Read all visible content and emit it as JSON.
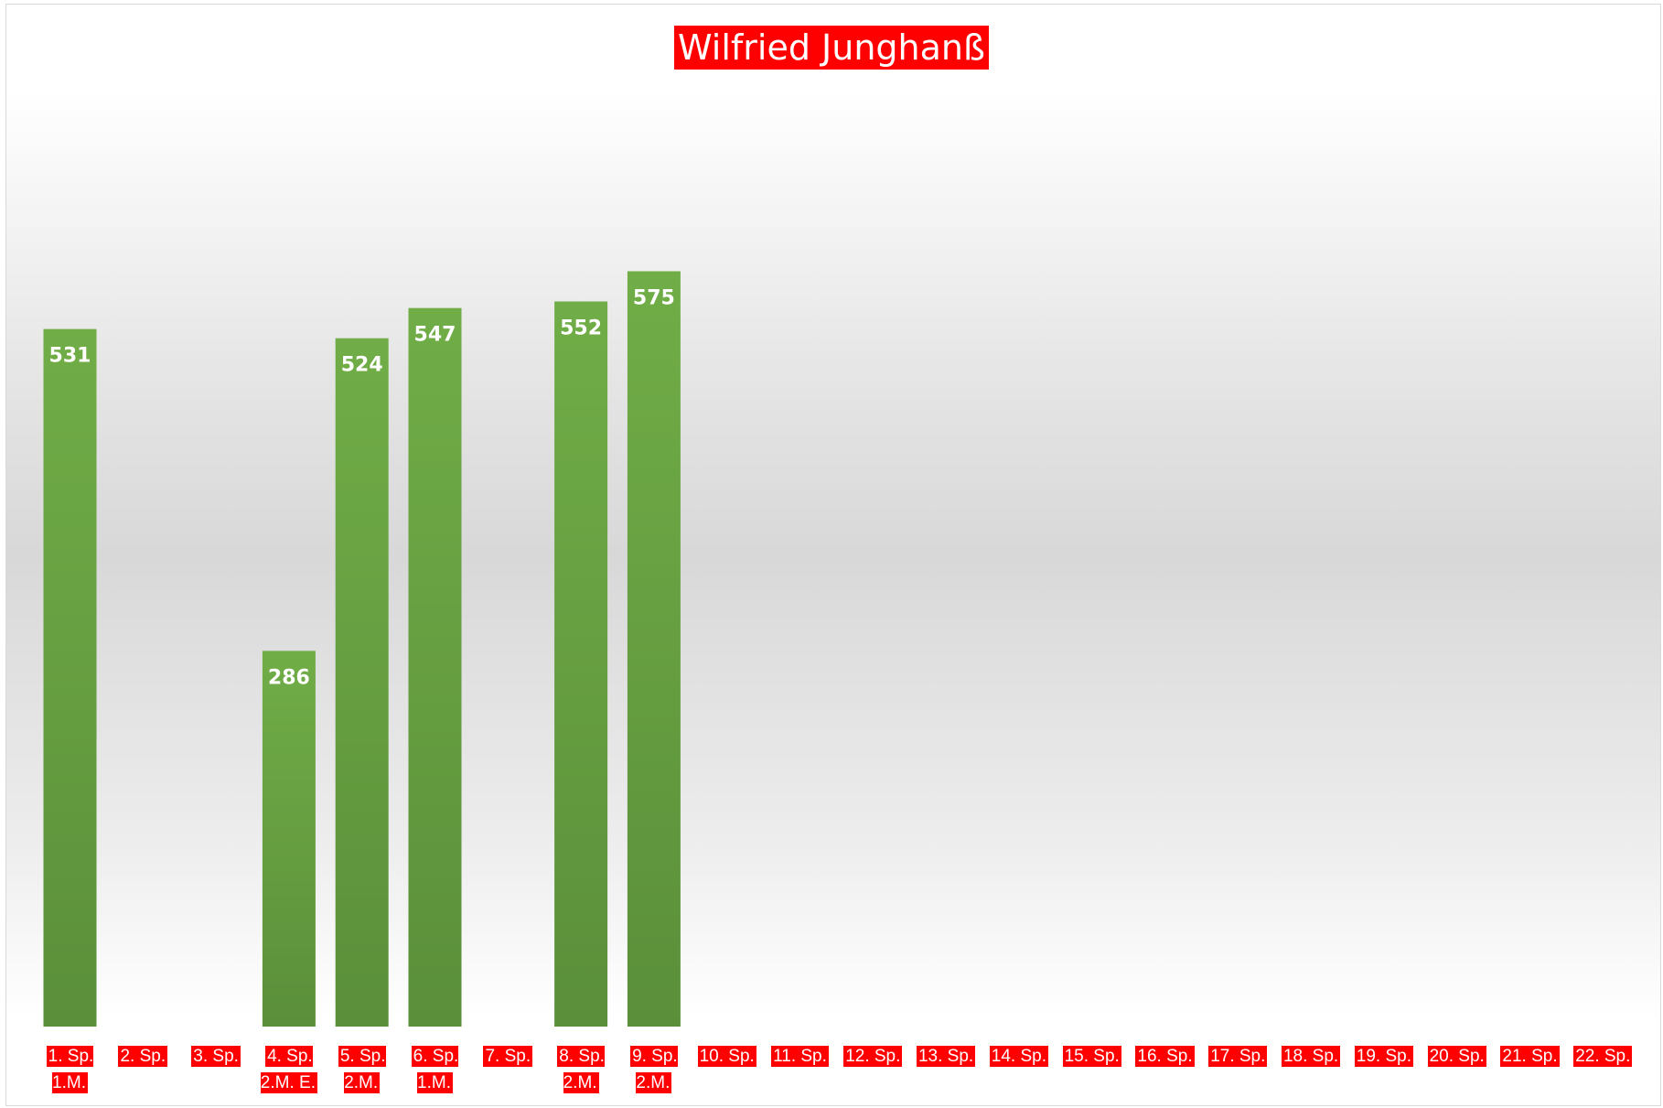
{
  "chart_data": {
    "type": "bar",
    "title": "Wilfried Junghanß",
    "categories": [
      "1. Sp.\n1.M.",
      "2. Sp.",
      "3. Sp.",
      "4. Sp.\n2.M. E.",
      "5. Sp.\n2.M.",
      "6. Sp.\n1.M.",
      "7. Sp.",
      "8. Sp.\n2.M.",
      "9. Sp.\n2.M.",
      "10. Sp.",
      "11. Sp.",
      "12. Sp.",
      "13. Sp.",
      "14. Sp.",
      "15. Sp.",
      "16. Sp.",
      "17. Sp.",
      "18. Sp.",
      "19. Sp.",
      "20. Sp.",
      "21. Sp.",
      "22. Sp."
    ],
    "values": [
      531,
      null,
      null,
      286,
      524,
      547,
      null,
      552,
      575,
      null,
      null,
      null,
      null,
      null,
      null,
      null,
      null,
      null,
      null,
      null,
      null,
      null
    ],
    "color": "#6aa84f",
    "ylim": [
      0,
      700
    ]
  }
}
